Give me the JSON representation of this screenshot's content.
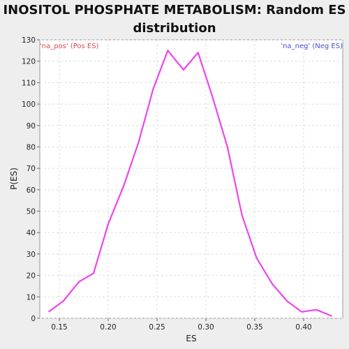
{
  "chart_data": {
    "type": "line",
    "title_line1": "INOSITOL PHOSPHATE METABOLISM: Random ES",
    "title_line2": "distribution",
    "xlabel": "ES",
    "ylabel": "P(ES)",
    "xlim": [
      0.13,
      0.44
    ],
    "ylim": [
      0,
      130
    ],
    "xticks": [
      0.15,
      0.2,
      0.25,
      0.3,
      0.35,
      0.4
    ],
    "xtick_labels": [
      "0.15",
      "0.20",
      "0.25",
      "0.30",
      "0.35",
      "0.40"
    ],
    "yticks": [
      0,
      10,
      20,
      30,
      40,
      50,
      60,
      70,
      80,
      90,
      100,
      110,
      120,
      130
    ],
    "grid": true,
    "legend_left": "'na_pos' (Pos ES)",
    "legend_right": "'na_neg' (Neg ES)",
    "legend_left_color": "#e04a4a",
    "legend_right_color": "#4a4ad8",
    "line_color": "#ee44ee",
    "series": [
      {
        "x": [
          0.139,
          0.154,
          0.17,
          0.185,
          0.2,
          0.216,
          0.231,
          0.246,
          0.261,
          0.277,
          0.292,
          0.307,
          0.322,
          0.337,
          0.352,
          0.368,
          0.383,
          0.398,
          0.413,
          0.429
        ],
        "y": [
          3,
          8,
          17,
          21,
          44,
          62,
          82,
          107,
          125,
          116,
          124,
          103,
          80,
          48,
          28,
          16,
          8,
          3,
          4,
          1
        ]
      }
    ]
  }
}
